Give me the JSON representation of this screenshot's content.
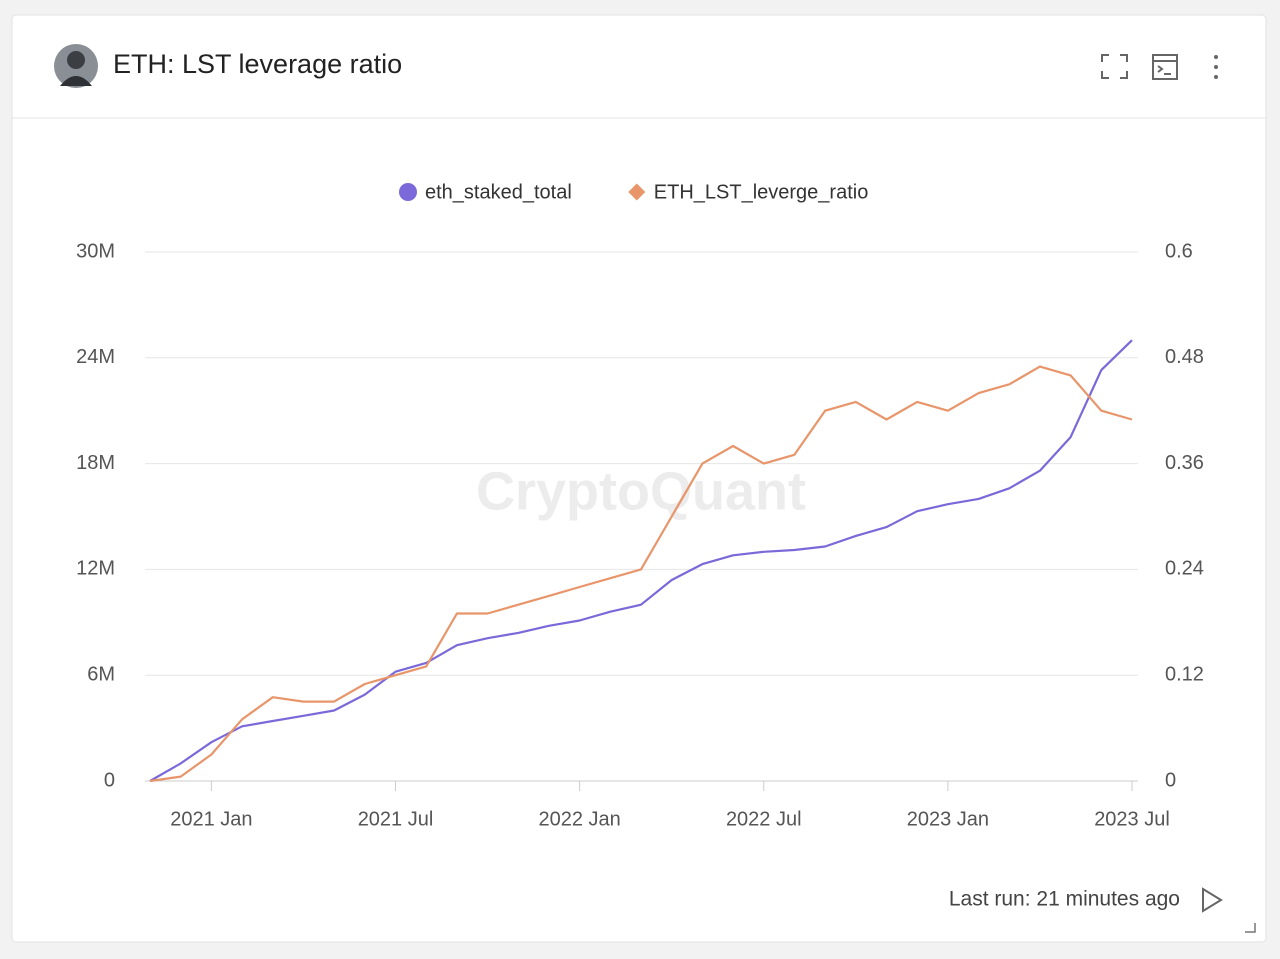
{
  "header": {
    "title": "ETH: LST leverage ratio"
  },
  "footer": {
    "last_run": "Last run: 21 minutes ago"
  },
  "chart_data": {
    "type": "line",
    "watermark": "CryptoQuant",
    "x": [
      "2020-11",
      "2020-12",
      "2021-01",
      "2021-02",
      "2021-03",
      "2021-04",
      "2021-05",
      "2021-06",
      "2021-07",
      "2021-08",
      "2021-09",
      "2021-10",
      "2021-11",
      "2021-12",
      "2022-01",
      "2022-02",
      "2022-03",
      "2022-04",
      "2022-05",
      "2022-06",
      "2022-07",
      "2022-08",
      "2022-09",
      "2022-10",
      "2022-11",
      "2022-12",
      "2023-01",
      "2023-02",
      "2023-03",
      "2023-04",
      "2023-05",
      "2023-06",
      "2023-07"
    ],
    "xlim": [
      "2020-11",
      "2023-07"
    ],
    "xticks": [
      {
        "value": "2021-01",
        "label": "2021 Jan"
      },
      {
        "value": "2021-07",
        "label": "2021 Jul"
      },
      {
        "value": "2022-01",
        "label": "2022 Jan"
      },
      {
        "value": "2022-07",
        "label": "2022 Jul"
      },
      {
        "value": "2023-01",
        "label": "2023 Jan"
      },
      {
        "value": "2023-07",
        "label": "2023 Jul"
      }
    ],
    "ylim": [
      0,
      30000000
    ],
    "yticks": [
      0,
      {
        "value": 6000000,
        "label": "6M"
      },
      {
        "value": 12000000,
        "label": "12M"
      },
      {
        "value": 18000000,
        "label": "18M"
      },
      {
        "value": 24000000,
        "label": "24M"
      },
      {
        "value": 30000000,
        "label": "30M"
      }
    ],
    "y2lim": [
      0,
      0.6
    ],
    "y2ticks": [
      0,
      0.12,
      0.24,
      0.36,
      0.48,
      0.6
    ],
    "grid": true,
    "series": [
      {
        "name": "eth_staked_total",
        "color": "#7b68d9",
        "marker": "circle",
        "values": [
          0,
          1000000,
          2200000,
          3100000,
          3400000,
          3700000,
          4000000,
          4900000,
          6200000,
          6700000,
          7700000,
          8100000,
          8400000,
          8800000,
          9100000,
          9600000,
          10000000,
          11400000,
          12300000,
          12800000,
          13000000,
          13100000,
          13300000,
          13900000,
          14400000,
          15300000,
          15700000,
          16000000,
          16600000,
          17600000,
          19500000,
          23300000,
          25000000
        ]
      },
      {
        "name": "ETH_LST_leverge_ratio",
        "color": "#e8956a",
        "marker": "diamond",
        "axis": "y2",
        "values": [
          0,
          0.005,
          0.03,
          0.07,
          0.095,
          0.09,
          0.09,
          0.11,
          0.12,
          0.13,
          0.19,
          0.19,
          0.2,
          0.21,
          0.22,
          0.23,
          0.24,
          0.3,
          0.36,
          0.38,
          0.36,
          0.37,
          0.42,
          0.43,
          0.41,
          0.43,
          0.42,
          0.44,
          0.45,
          0.47,
          0.46,
          0.42,
          0.41
        ]
      }
    ]
  }
}
